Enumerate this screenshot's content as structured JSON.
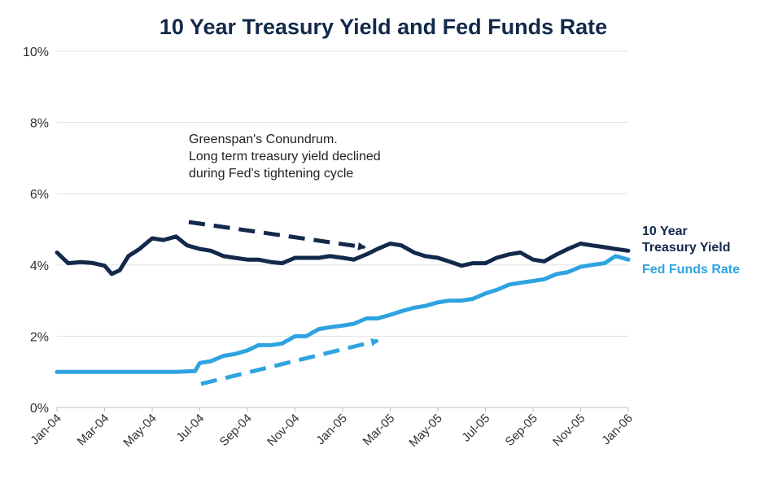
{
  "chart_data": {
    "type": "line",
    "title": "10 Year Treasury Yield and Fed Funds Rate",
    "ylim": [
      0,
      10
    ],
    "yticks": [
      0,
      2,
      4,
      6,
      8,
      10
    ],
    "ytick_labels": [
      "0%",
      "2%",
      "4%",
      "6%",
      "8%",
      "10%"
    ],
    "x_range": [
      "2004-01",
      "2006-01"
    ],
    "xtick_labels": [
      "Jan-04",
      "Mar-04",
      "May-04",
      "Jul-04",
      "Sep-04",
      "Nov-04",
      "Jan-05",
      "Mar-05",
      "May-05",
      "Jul-05",
      "Sep-05",
      "Nov-05",
      "Jan-06"
    ],
    "grid": "horizontal",
    "legend_placement": "right",
    "series": [
      {
        "name": "10 Year Treasury Yield",
        "color": "#13294b",
        "x": [
          "2004-01",
          "2004-01-15",
          "2004-02",
          "2004-02-15",
          "2004-03",
          "2004-03-10",
          "2004-03-20",
          "2004-04",
          "2004-04-15",
          "2004-05",
          "2004-05-15",
          "2004-06",
          "2004-06-15",
          "2004-07",
          "2004-07-15",
          "2004-08",
          "2004-08-15",
          "2004-09",
          "2004-09-15",
          "2004-10",
          "2004-10-15",
          "2004-11",
          "2004-11-15",
          "2004-12",
          "2004-12-15",
          "2005-01",
          "2005-01-15",
          "2005-02",
          "2005-02-15",
          "2005-03",
          "2005-03-15",
          "2005-04",
          "2005-04-15",
          "2005-05",
          "2005-05-15",
          "2005-06",
          "2005-06-15",
          "2005-07",
          "2005-07-15",
          "2005-08",
          "2005-08-15",
          "2005-09",
          "2005-09-15",
          "2005-10",
          "2005-10-15",
          "2005-11",
          "2005-11-15",
          "2005-12",
          "2005-12-15",
          "2006-01"
        ],
        "values": [
          4.35,
          4.05,
          4.08,
          4.06,
          3.98,
          3.75,
          3.85,
          4.25,
          4.45,
          4.75,
          4.7,
          4.8,
          4.55,
          4.45,
          4.4,
          4.25,
          4.2,
          4.15,
          4.15,
          4.08,
          4.05,
          4.2,
          4.2,
          4.2,
          4.25,
          4.2,
          4.15,
          4.3,
          4.45,
          4.6,
          4.55,
          4.35,
          4.25,
          4.2,
          4.1,
          3.98,
          4.05,
          4.05,
          4.2,
          4.3,
          4.35,
          4.15,
          4.1,
          4.3,
          4.45,
          4.6,
          4.55,
          4.5,
          4.45,
          4.4
        ]
      },
      {
        "name": "Fed Funds Rate",
        "color": "#2ea3e0",
        "x": [
          "2004-01",
          "2004-02",
          "2004-03",
          "2004-04",
          "2004-05",
          "2004-06",
          "2004-06-25",
          "2004-07",
          "2004-07-15",
          "2004-08",
          "2004-08-15",
          "2004-09",
          "2004-09-15",
          "2004-10",
          "2004-10-15",
          "2004-11",
          "2004-11-15",
          "2004-12",
          "2004-12-15",
          "2005-01",
          "2005-01-15",
          "2005-02",
          "2005-02-15",
          "2005-03",
          "2005-03-15",
          "2005-04",
          "2005-04-15",
          "2005-05",
          "2005-05-15",
          "2005-06",
          "2005-06-15",
          "2005-07",
          "2005-07-15",
          "2005-08",
          "2005-08-15",
          "2005-09",
          "2005-09-15",
          "2005-10",
          "2005-10-15",
          "2005-11",
          "2005-11-15",
          "2005-12",
          "2005-12-15",
          "2006-01"
        ],
        "values": [
          1.0,
          1.0,
          1.0,
          1.0,
          1.0,
          1.0,
          1.02,
          1.25,
          1.3,
          1.45,
          1.5,
          1.6,
          1.75,
          1.75,
          1.8,
          2.0,
          2.0,
          2.2,
          2.25,
          2.3,
          2.35,
          2.5,
          2.5,
          2.6,
          2.7,
          2.8,
          2.85,
          2.95,
          3.0,
          3.0,
          3.05,
          3.2,
          3.3,
          3.45,
          3.5,
          3.55,
          3.6,
          3.75,
          3.8,
          3.95,
          4.0,
          4.05,
          4.25,
          4.15
        ]
      }
    ],
    "annotation": {
      "lines": [
        "Greenspan's Conundrum.",
        "Long term treasury yield declined",
        "during Fed's tightening cycle"
      ]
    },
    "arrows": [
      {
        "series": "10 Year Treasury Yield",
        "direction": "down",
        "style": "dashed",
        "color": "#13294b"
      },
      {
        "series": "Fed Funds Rate",
        "direction": "up",
        "style": "dashed",
        "color": "#2ea3e0"
      }
    ],
    "legend": {
      "treasury_lines": [
        "10 Year",
        "Treasury Yield"
      ],
      "fed_label": "Fed Funds Rate"
    }
  }
}
